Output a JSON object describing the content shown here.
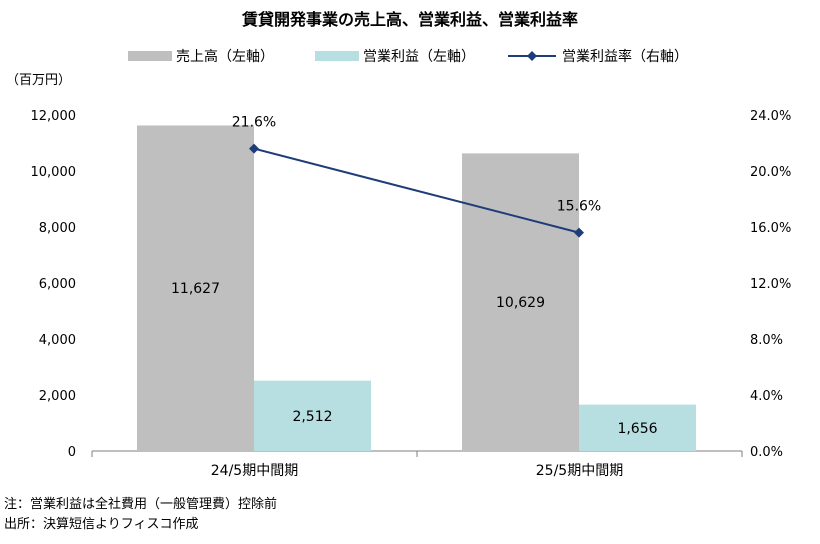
{
  "chart_data": {
    "type": "bar",
    "title": "賃貸開発事業の売上高、営業利益、営業利益率",
    "y_unit_label": "（百万円）",
    "categories": [
      "24/5期中間期",
      "25/5期中間期"
    ],
    "series": [
      {
        "name": "売上高（左軸）",
        "type": "bar",
        "axis": "left",
        "values": [
          11627,
          10629
        ],
        "labels": [
          "11,627",
          "10,629"
        ],
        "color": "#bfbfbf"
      },
      {
        "name": "営業利益（左軸）",
        "type": "bar",
        "axis": "left",
        "values": [
          2512,
          1656
        ],
        "labels": [
          "2,512",
          "1,656"
        ],
        "color": "#b7dee0"
      },
      {
        "name": "営業利益率（右軸）",
        "type": "line",
        "axis": "right",
        "values": [
          21.6,
          15.6
        ],
        "labels": [
          "21.6%",
          "15.6%"
        ],
        "color": "#1f3c7a"
      }
    ],
    "y_left": {
      "min": 0,
      "max": 12000,
      "ticks": [
        "0",
        "2,000",
        "4,000",
        "6,000",
        "8,000",
        "10,000",
        "12,000"
      ]
    },
    "y_right": {
      "min": 0,
      "max": 24,
      "ticks": [
        "0.0%",
        "4.0%",
        "8.0%",
        "12.0%",
        "16.0%",
        "20.0%",
        "24.0%"
      ]
    },
    "grid": false,
    "legend": "top"
  },
  "notes": [
    "注：営業利益は全社費用（一般管理費）控除前",
    "出所：決算短信よりフィスコ作成"
  ]
}
